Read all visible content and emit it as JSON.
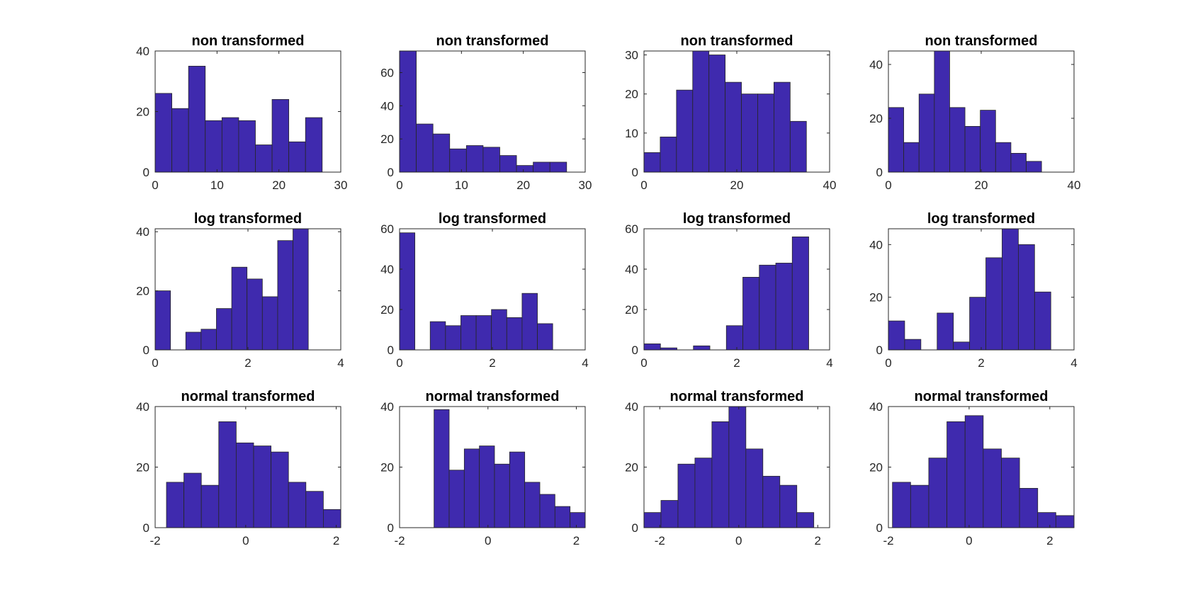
{
  "colors": {
    "bar": "#3f2aae",
    "axis": "#262626",
    "background": "#ffffff"
  },
  "chart_data": [
    {
      "type": "bar",
      "title": "non transformed",
      "xlim": [
        0,
        30
      ],
      "ylim": [
        0,
        40
      ],
      "xticks": [
        0,
        10,
        20,
        30
      ],
      "yticks": [
        0,
        20,
        40
      ],
      "edges_start": 0,
      "bin_width": 2.7,
      "values": [
        26,
        21,
        35,
        17,
        18,
        17,
        9,
        24,
        10,
        18
      ]
    },
    {
      "type": "bar",
      "title": "non transformed",
      "xlim": [
        0,
        30
      ],
      "ylim": [
        0,
        73
      ],
      "xticks": [
        0,
        10,
        20,
        30
      ],
      "yticks": [
        0,
        20,
        40,
        60
      ],
      "edges_start": 0,
      "bin_width": 2.7,
      "values": [
        73,
        29,
        23,
        14,
        16,
        15,
        10,
        4,
        6,
        6
      ]
    },
    {
      "type": "bar",
      "title": "non transformed",
      "xlim": [
        0,
        40
      ],
      "ylim": [
        0,
        31
      ],
      "xticks": [
        0,
        20,
        40
      ],
      "yticks": [
        0,
        10,
        20,
        30
      ],
      "edges_start": 0,
      "bin_width": 3.5,
      "values": [
        5,
        9,
        21,
        31,
        30,
        23,
        20,
        20,
        23,
        13
      ]
    },
    {
      "type": "bar",
      "title": "non transformed",
      "xlim": [
        0,
        40
      ],
      "ylim": [
        0,
        45
      ],
      "xticks": [
        0,
        20,
        40
      ],
      "yticks": [
        0,
        20,
        40
      ],
      "edges_start": 0,
      "bin_width": 3.3,
      "values": [
        24,
        11,
        29,
        45,
        24,
        17,
        23,
        11,
        7,
        4
      ]
    },
    {
      "type": "bar",
      "title": "log transformed",
      "xlim": [
        0,
        4
      ],
      "ylim": [
        0,
        41
      ],
      "xticks": [
        0,
        2,
        4
      ],
      "yticks": [
        0,
        20,
        40
      ],
      "edges_start": 0,
      "bin_width": 0.33,
      "values": [
        20,
        0,
        6,
        7,
        14,
        28,
        24,
        18,
        37,
        41
      ]
    },
    {
      "type": "bar",
      "title": "log transformed",
      "xlim": [
        0,
        4
      ],
      "ylim": [
        0,
        60
      ],
      "xticks": [
        0,
        2,
        4
      ],
      "yticks": [
        0,
        20,
        40,
        60
      ],
      "edges_start": 0,
      "bin_width": 0.33,
      "values": [
        58,
        0,
        14,
        12,
        17,
        17,
        20,
        16,
        28,
        13
      ]
    },
    {
      "type": "bar",
      "title": "log transformed",
      "xlim": [
        0,
        4
      ],
      "ylim": [
        0,
        60
      ],
      "xticks": [
        0,
        2,
        4
      ],
      "yticks": [
        0,
        20,
        40,
        60
      ],
      "edges_start": 0,
      "bin_width": 0.355,
      "values": [
        3,
        1,
        0,
        2,
        0,
        12,
        36,
        42,
        43,
        56
      ]
    },
    {
      "type": "bar",
      "title": "log transformed",
      "xlim": [
        0,
        4
      ],
      "ylim": [
        0,
        46
      ],
      "xticks": [
        0,
        2,
        4
      ],
      "yticks": [
        0,
        20,
        40
      ],
      "edges_start": 0,
      "bin_width": 0.35,
      "values": [
        11,
        4,
        0,
        14,
        3,
        20,
        35,
        46,
        40,
        22
      ]
    },
    {
      "type": "bar",
      "title": "normal transformed",
      "xlim": [
        -2,
        2.1
      ],
      "ylim": [
        0,
        40
      ],
      "xticks": [
        -2,
        0,
        2
      ],
      "yticks": [
        0,
        20,
        40
      ],
      "edges_start": -1.75,
      "bin_width": 0.385,
      "values": [
        15,
        18,
        14,
        35,
        28,
        27,
        25,
        15,
        12,
        6
      ]
    },
    {
      "type": "bar",
      "title": "normal transformed",
      "xlim": [
        -2,
        2.2
      ],
      "ylim": [
        0,
        40
      ],
      "xticks": [
        -2,
        0,
        2
      ],
      "yticks": [
        0,
        20,
        40
      ],
      "edges_start": -1.22,
      "bin_width": 0.342,
      "values": [
        39,
        19,
        26,
        27,
        21,
        25,
        15,
        11,
        7,
        5
      ]
    },
    {
      "type": "bar",
      "title": "normal transformed",
      "xlim": [
        -2.4,
        2.3
      ],
      "ylim": [
        0,
        40
      ],
      "xticks": [
        -2,
        0,
        2
      ],
      "yticks": [
        0,
        20,
        40
      ],
      "edges_start": -2.4,
      "bin_width": 0.43,
      "values": [
        5,
        9,
        21,
        23,
        35,
        40,
        26,
        17,
        14,
        5
      ]
    },
    {
      "type": "bar",
      "title": "normal transformed",
      "xlim": [
        -2,
        2.6
      ],
      "ylim": [
        0,
        40
      ],
      "xticks": [
        -2,
        0,
        2
      ],
      "yticks": [
        0,
        20,
        40
      ],
      "edges_start": -1.9,
      "bin_width": 0.45,
      "values": [
        15,
        14,
        23,
        35,
        37,
        26,
        23,
        13,
        5,
        4
      ]
    }
  ]
}
